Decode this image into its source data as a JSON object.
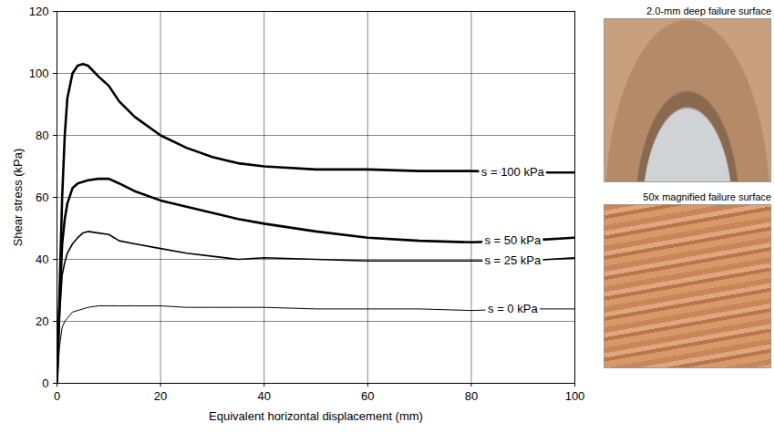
{
  "chart_data": {
    "type": "line",
    "x_label": "Equivalent horizontal displacement (mm)",
    "y_label": "Shear stress (kPa)",
    "x": [
      0,
      0.5,
      1,
      1.5,
      2,
      3,
      4,
      5,
      6,
      8,
      10,
      12,
      15,
      20,
      25,
      30,
      35,
      40,
      50,
      60,
      70,
      80,
      90,
      100
    ],
    "series": [
      {
        "name": "s = 100 kPa",
        "color": "#000000",
        "values": [
          0,
          30,
          60,
          80,
          92,
          100,
          102.5,
          103,
          102.5,
          99,
          96,
          91,
          86,
          80,
          76,
          73,
          71,
          70,
          69,
          69,
          68.5,
          68.5,
          68,
          68
        ]
      },
      {
        "name": "s = 50 kPa",
        "color": "#000000",
        "values": [
          0,
          25,
          45,
          53,
          58,
          63,
          64.5,
          65,
          65.5,
          66,
          66,
          64.5,
          62,
          59,
          57,
          55,
          53,
          51.5,
          49,
          47,
          46,
          45.5,
          46,
          47
        ]
      },
      {
        "name": "s = 25 kPa",
        "color": "#000000",
        "values": [
          0,
          22,
          35,
          39,
          42,
          45,
          47,
          48.5,
          49,
          48.5,
          48,
          46,
          45,
          43.5,
          42,
          41,
          40,
          40.5,
          40,
          39.5,
          39.5,
          39.5,
          39.5,
          40.5
        ]
      },
      {
        "name": "s = 0 kPa",
        "color": "#000000",
        "values": [
          0,
          12,
          18,
          20,
          21,
          23,
          23.5,
          24,
          24.5,
          25,
          25,
          25,
          25,
          25,
          24.5,
          24.5,
          24.5,
          24.5,
          24,
          24,
          24,
          23.5,
          24,
          24
        ]
      }
    ],
    "xlim": [
      0,
      100
    ],
    "xticks": [
      0,
      20,
      40,
      60,
      80,
      100
    ],
    "ylim": [
      0,
      120
    ],
    "yticks": [
      0,
      20,
      40,
      60,
      80,
      100,
      120
    ],
    "grid": true,
    "annotations": [
      "2.0-mm deep failure surface",
      "50x magnified failure surface"
    ]
  }
}
